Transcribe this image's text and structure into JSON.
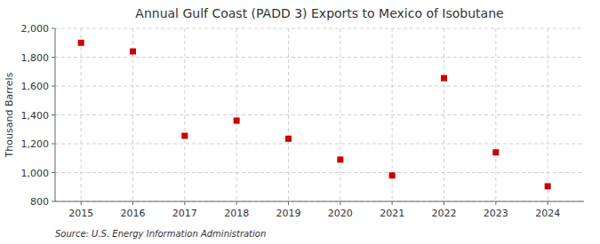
{
  "chart_data": {
    "type": "scatter",
    "title": "Annual Gulf Coast (PADD 3) Exports to Mexico of Isobutane",
    "y_label": "Thousand Barrels",
    "source": "Source: U.S. Energy Information Administration",
    "x": [
      2015,
      2016,
      2017,
      2018,
      2019,
      2020,
      2021,
      2022,
      2023,
      2024
    ],
    "values": [
      1900,
      1840,
      1255,
      1360,
      1235,
      1090,
      980,
      1655,
      1140,
      905
    ],
    "color": "#cc0000",
    "marker": "square",
    "xlim": [
      2014.5,
      2024.7
    ],
    "xticks": [
      2015,
      2016,
      2017,
      2018,
      2019,
      2020,
      2021,
      2022,
      2023,
      2024
    ],
    "ylim": [
      800,
      2000
    ],
    "yticks": [
      800,
      {
        "value": 1000,
        "label": "1,000"
      },
      {
        "value": 1200,
        "label": "1,200"
      },
      {
        "value": 1400,
        "label": "1,400"
      },
      {
        "value": 1600,
        "label": "1,600"
      },
      {
        "value": 1800,
        "label": "1,800"
      },
      {
        "value": 2000,
        "label": "2,000"
      }
    ],
    "grid": true
  }
}
